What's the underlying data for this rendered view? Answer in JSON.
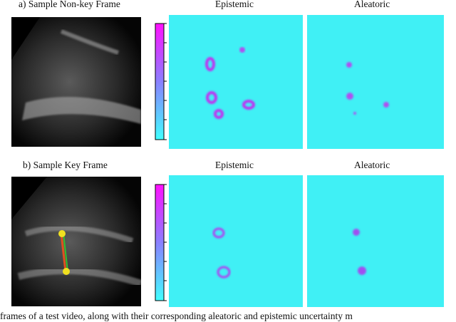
{
  "rows": [
    {
      "label": "a) Sample Non-key Frame",
      "epistemic_title": "Epistemic",
      "aleatoric_title": "Aleatoric"
    },
    {
      "label": "b) Sample Key Frame",
      "epistemic_title": "Epistemic",
      "aleatoric_title": "Aleatoric"
    }
  ],
  "colormap": {
    "low": "#40ffff",
    "high": "#ff10ff"
  },
  "caption": "frames of a test video, along with their corresponding aleatoric and epistemic uncertainty m"
}
